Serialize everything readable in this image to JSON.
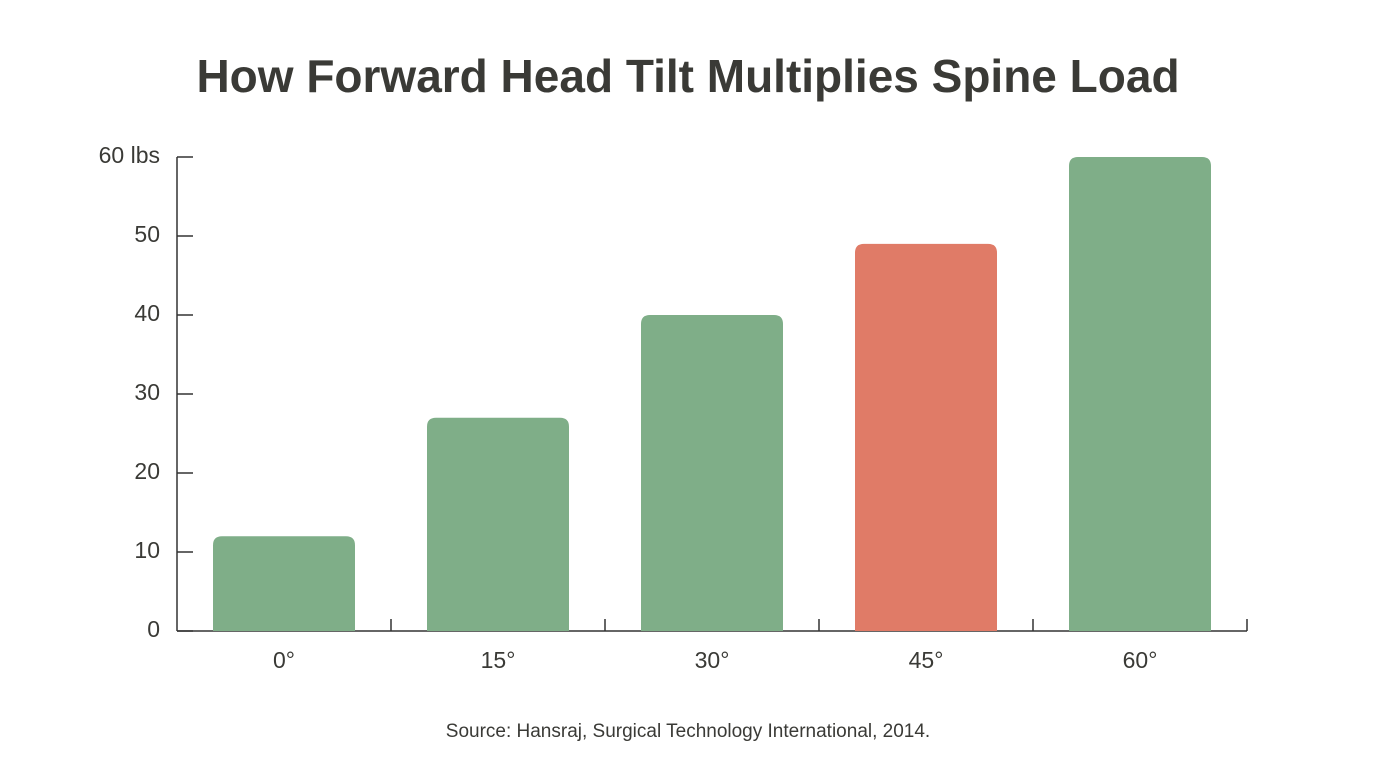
{
  "chart_data": {
    "type": "bar",
    "title": "How Forward Head Tilt Multiplies Spine Load",
    "categories": [
      "0°",
      "15°",
      "30°",
      "45°",
      "60°"
    ],
    "values": [
      12,
      27,
      40,
      49,
      60
    ],
    "colors": [
      "#7fae88",
      "#7fae88",
      "#7fae88",
      "#e07b67",
      "#7fae88"
    ],
    "ylim": [
      0,
      60
    ],
    "yticks": [
      0,
      10,
      20,
      30,
      40,
      50,
      {
        "value": 60,
        "label": "60 lbs"
      }
    ],
    "source": "Source: Hansraj, Surgical Technology International, 2014."
  }
}
